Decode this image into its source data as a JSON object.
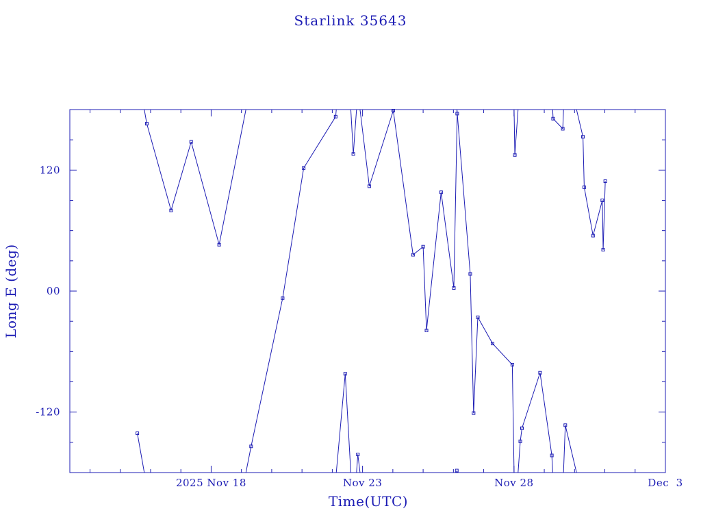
{
  "colors": {
    "ink": "#1c1cb4",
    "background": "#ffffff"
  },
  "chart_data": {
    "type": "scatter",
    "title": "Starlink 35643",
    "xlabel": "Time(UTC)",
    "ylabel": "Long E (deg)",
    "xlim": [
      "2025-11-13T08:00",
      "2025-12-03T00:00"
    ],
    "ylim": [
      -180,
      180
    ],
    "x_tick_labels": [
      "2025 Nov 18",
      "Nov 23",
      "Nov 28",
      "Dec  3"
    ],
    "x_tick_dates": [
      "2025-11-18",
      "2025-11-23",
      "2025-11-28",
      "2025-12-03"
    ],
    "y_tick_labels": [
      "-120",
      "00",
      "120"
    ],
    "y_tick_values": [
      -120,
      0,
      120
    ],
    "grid": false,
    "legend": "none",
    "line_mode": "connected with wrap at ±180",
    "series": [
      {
        "points": [
          {
            "t": "2025-11-15T13:30",
            "lon": -141
          },
          {
            "t": "2025-11-15T21:00",
            "lon": 166
          },
          {
            "t": "2025-11-16T16:15",
            "lon": 80
          },
          {
            "t": "2025-11-17T08:10",
            "lon": 148
          },
          {
            "t": "2025-11-18T06:20",
            "lon": 46
          },
          {
            "t": "2025-11-19T07:40",
            "lon": -154
          },
          {
            "t": "2025-11-20T08:40",
            "lon": -7
          },
          {
            "t": "2025-11-21T01:20",
            "lon": 122
          },
          {
            "t": "2025-11-22T02:40",
            "lon": 173
          },
          {
            "t": "2025-11-22T10:15",
            "lon": -82
          },
          {
            "t": "2025-11-22T16:40",
            "lon": 136
          },
          {
            "t": "2025-11-22T20:15",
            "lon": -162
          },
          {
            "t": "2025-11-23T05:20",
            "lon": 104
          },
          {
            "t": "2025-11-24T00:20",
            "lon": 179
          },
          {
            "t": "2025-11-24T16:00",
            "lon": 36
          },
          {
            "t": "2025-11-25T00:00",
            "lon": 44
          },
          {
            "t": "2025-11-25T02:40",
            "lon": -39
          },
          {
            "t": "2025-11-25T14:15",
            "lon": 98
          },
          {
            "t": "2025-11-26T00:20",
            "lon": 3
          },
          {
            "t": "2025-11-26T03:00",
            "lon": 176
          },
          {
            "t": "2025-11-26T02:40",
            "lon": -178
          },
          {
            "t": "2025-11-26T13:20",
            "lon": 17
          },
          {
            "t": "2025-11-26T16:00",
            "lon": -121
          },
          {
            "t": "2025-11-26T19:20",
            "lon": -26
          },
          {
            "t": "2025-11-27T07:00",
            "lon": -52
          },
          {
            "t": "2025-11-27T22:40",
            "lon": -73
          },
          {
            "t": "2025-11-28T00:40",
            "lon": 135
          },
          {
            "t": "2025-11-28T05:00",
            "lon": -149
          },
          {
            "t": "2025-11-28T06:20",
            "lon": -136
          },
          {
            "t": "2025-11-28T20:40",
            "lon": -81
          },
          {
            "t": "2025-11-29T06:00",
            "lon": -163
          },
          {
            "t": "2025-11-29T07:00",
            "lon": 171
          },
          {
            "t": "2025-11-29T14:40",
            "lon": 161
          },
          {
            "t": "2025-11-29T16:40",
            "lon": -133
          },
          {
            "t": "2025-11-30T06:40",
            "lon": 153
          },
          {
            "t": "2025-11-30T07:40",
            "lon": 103
          },
          {
            "t": "2025-11-30T14:40",
            "lon": 55
          },
          {
            "t": "2025-11-30T22:00",
            "lon": 90
          },
          {
            "t": "2025-11-30T22:40",
            "lon": 41
          },
          {
            "t": "2025-12-01T00:20",
            "lon": 109
          }
        ]
      }
    ]
  }
}
